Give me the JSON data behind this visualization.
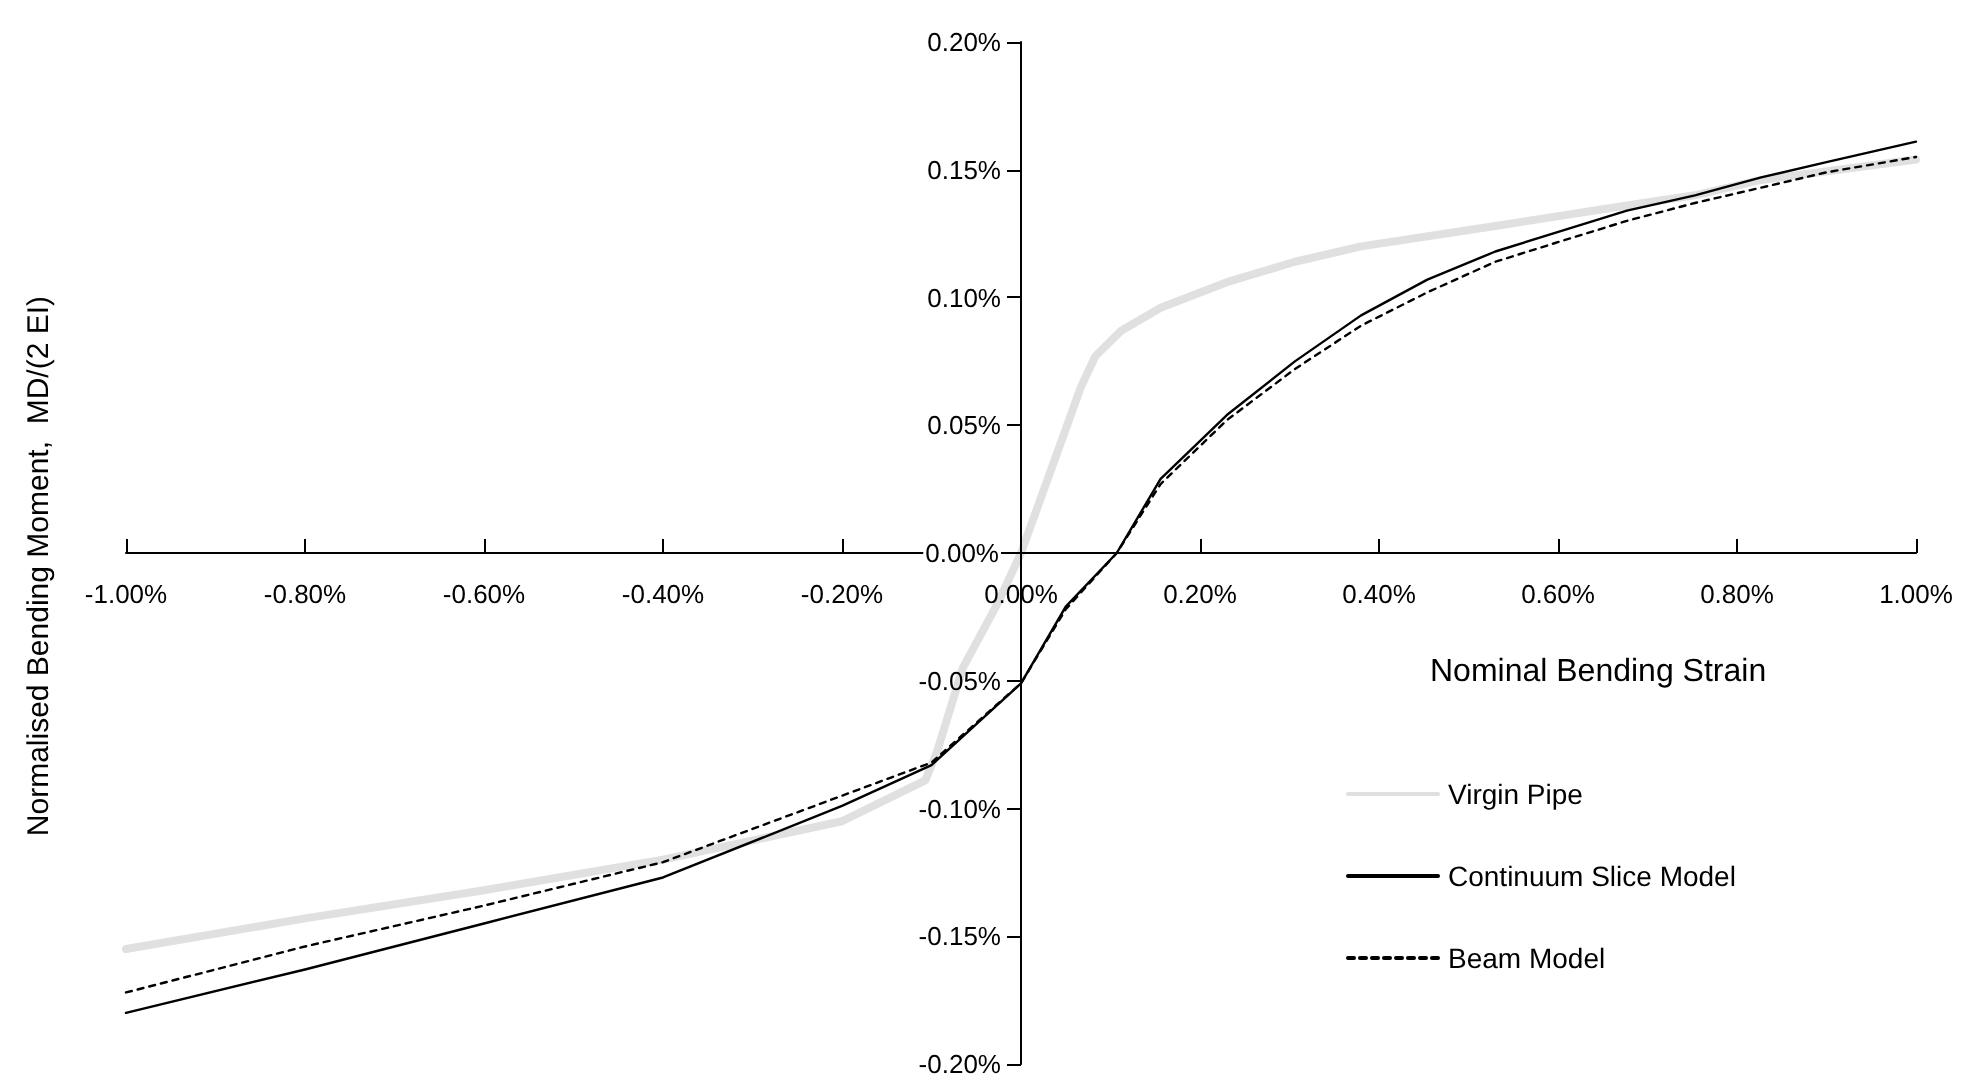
{
  "chart_data": {
    "type": "line",
    "xlabel": "Nominal Bending Strain",
    "ylabel": "Normalised Bending Moment,  MD/(2 EI)",
    "xlim": [
      -1,
      1
    ],
    "ylim": [
      -0.2,
      0.2
    ],
    "xticks": [
      {
        "value": -1,
        "label": "-1.00%"
      },
      {
        "value": -0.8,
        "label": "-0.80%"
      },
      {
        "value": -0.6,
        "label": "-0.60%"
      },
      {
        "value": -0.4,
        "label": "-0.40%"
      },
      {
        "value": -0.2,
        "label": "-0.20%"
      },
      {
        "value": 0,
        "label": "0.00%"
      },
      {
        "value": 0.2,
        "label": "0.20%"
      },
      {
        "value": 0.4,
        "label": "0.40%"
      },
      {
        "value": 0.6,
        "label": "0.60%"
      },
      {
        "value": 0.8,
        "label": "0.80%"
      },
      {
        "value": 1,
        "label": "1.00%"
      }
    ],
    "yticks": [
      {
        "value": -0.2,
        "label": "-0.20%"
      },
      {
        "value": -0.15,
        "label": "-0.15%"
      },
      {
        "value": -0.1,
        "label": "-0.10%"
      },
      {
        "value": -0.05,
        "label": "-0.05%"
      },
      {
        "value": 0,
        "label": "0.00%"
      },
      {
        "value": 0.05,
        "label": "0.05%"
      },
      {
        "value": 0.1,
        "label": "0.10%"
      },
      {
        "value": 0.15,
        "label": "0.15%"
      },
      {
        "value": 0.2,
        "label": "0.20%"
      }
    ],
    "grid": false,
    "legend": "bottom right",
    "marker": "none",
    "series": [
      {
        "name": "Virgin Pipe",
        "color": "#e0e0e0",
        "line_style": "solid",
        "x": [
          -1,
          -0.8,
          -0.6,
          -0.4,
          -0.2,
          -0.107,
          -0.094,
          -0.065,
          -0.025,
          0,
          0.067,
          0.083,
          0.112,
          0.156,
          0.23,
          0.306,
          0.38,
          0.53,
          0.677,
          0.753,
          0.827,
          1
        ],
        "values": [
          -0.155,
          -0.143,
          -0.132,
          -0.12,
          -0.105,
          -0.089,
          -0.078,
          -0.045,
          -0.019,
          0,
          0.065,
          0.077,
          0.087,
          0.096,
          0.106,
          0.114,
          0.12,
          0.128,
          0.136,
          0.14,
          0.146,
          0.154
        ]
      },
      {
        "name": "Continuum Slice Model",
        "color": "#000000",
        "line_style": "solid",
        "x": [
          -1,
          -0.8,
          -0.6,
          -0.4,
          -0.2,
          -0.1,
          0,
          0.05,
          0.107,
          0.156,
          0.23,
          0.306,
          0.38,
          0.454,
          0.53,
          0.603,
          0.677,
          0.753,
          0.827,
          0.9,
          1
        ],
        "values": [
          -0.18,
          -0.163,
          -0.145,
          -0.127,
          -0.099,
          -0.083,
          -0.051,
          -0.021,
          0,
          0.029,
          0.054,
          0.075,
          0.093,
          0.107,
          0.118,
          0.126,
          0.134,
          0.14,
          0.147,
          0.153,
          0.161
        ]
      },
      {
        "name": "Beam Model",
        "color": "#000000",
        "line_style": "dashed",
        "x": [
          -1,
          -0.8,
          -0.6,
          -0.4,
          -0.2,
          -0.1,
          0,
          0.05,
          0.107,
          0.156,
          0.23,
          0.306,
          0.38,
          0.454,
          0.53,
          0.603,
          0.677,
          0.753,
          0.827,
          0.9,
          1
        ],
        "values": [
          -0.172,
          -0.154,
          -0.138,
          -0.121,
          -0.095,
          -0.082,
          -0.051,
          -0.022,
          0,
          0.027,
          0.052,
          0.072,
          0.089,
          0.102,
          0.114,
          0.122,
          0.13,
          0.137,
          0.143,
          0.149,
          0.155
        ]
      }
    ]
  }
}
